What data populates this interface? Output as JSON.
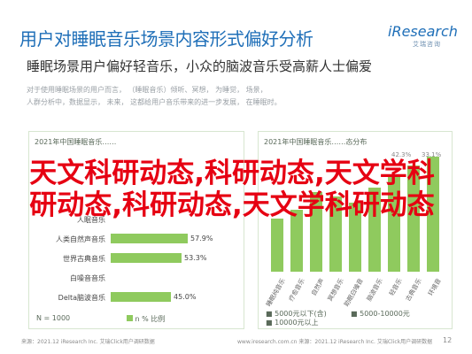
{
  "header": {
    "title": "用户对睡眠音乐场景内容形式偏好分析",
    "logo_main": "iResearch",
    "logo_sub": "艾瑞咨询"
  },
  "subtitle": "睡眠场景用户偏好轻音乐，小众的脑波音乐受高薪人士偏爱",
  "description": [
    "对于使用睡眠场景的用户而言，             （睡眠音乐）倾听、冥想，     为睡觉，    场景，",
    "人群分析中，数据显示，         未来，               这都给用户音乐带来的进一步发展，              在睡眠时。"
  ],
  "left_panel": {
    "title": "2021年中国睡眠音乐……",
    "bars": [
      {
        "label": "",
        "value": 0
      },
      {
        "label": "",
        "value": 0
      },
      {
        "label": "人眠音乐",
        "value": 0
      },
      {
        "label": "人类自然声音乐",
        "value": 57.9,
        "display": "57.9%"
      },
      {
        "label": "世界古典音乐",
        "value": 53.3,
        "display": "53.3%"
      },
      {
        "label": "白噪音音乐",
        "value": 0
      },
      {
        "label": "Delta脑波音乐",
        "value": 45.0,
        "display": "45.0%"
      }
    ],
    "n_note": "N = 1000",
    "source_note": "n % 比例"
  },
  "right_panel": {
    "title": "2021年中国睡眠音乐……态分布",
    "percent_labels": [
      "42.3%",
      "33.1%",
      "",
      ""
    ],
    "x_labels": [
      "睡眠纯音乐",
      "疗愈音乐",
      "自然声",
      "冥想音乐",
      "助眠白噪音",
      "脑波音乐",
      "轻音乐",
      "古典音乐",
      "环境音"
    ],
    "legend": [
      "■ 5000元以下(含)",
      "■ 5000-10000元",
      "■ 10000元以上"
    ]
  },
  "overlay_text": "天文科研动态,科研动态,天文学科研动态,科研动态,天文学科研动态",
  "footer": {
    "source": "来源：2021.12 iResearch Inc. 艾瑞Click用户调研数据",
    "site": "www.iresearch.com.cn    来源：2021.12 iResearch Inc. 艾瑞Click用户调研数据",
    "page": "12"
  }
}
